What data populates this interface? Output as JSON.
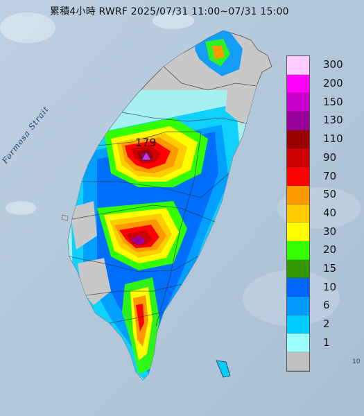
{
  "map": {
    "title": "累積4小時 RWRF 2025/07/31 11:00~07/31 15:00",
    "strait_label": "Formosa Strait",
    "max_value_label": "179",
    "edge_label": "10"
  },
  "legend": {
    "items": [
      {
        "label": "300",
        "color": "#ffcaff"
      },
      {
        "label": "200",
        "color": "#ff00ff"
      },
      {
        "label": "150",
        "color": "#cc00cc"
      },
      {
        "label": "130",
        "color": "#990099"
      },
      {
        "label": "110",
        "color": "#990000"
      },
      {
        "label": "90",
        "color": "#cc0000"
      },
      {
        "label": "70",
        "color": "#ff0000"
      },
      {
        "label": "50",
        "color": "#ff9900"
      },
      {
        "label": "40",
        "color": "#ffcc00"
      },
      {
        "label": "30",
        "color": "#ffff00"
      },
      {
        "label": "20",
        "color": "#33ff00"
      },
      {
        "label": "15",
        "color": "#339900"
      },
      {
        "label": "10",
        "color": "#0066ff"
      },
      {
        "label": "6",
        "color": "#0099ff"
      },
      {
        "label": "2",
        "color": "#00ccff"
      },
      {
        "label": "1",
        "color": "#99ffff"
      },
      {
        "label": "",
        "color": "#c0c0c0"
      }
    ]
  }
}
